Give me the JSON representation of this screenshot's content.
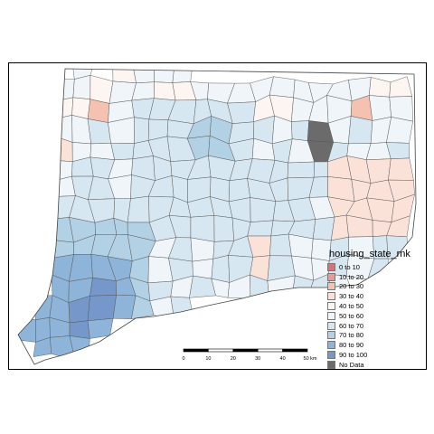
{
  "legend": {
    "title": "housing_state_rnk",
    "items": [
      {
        "label": "0 to 10",
        "color": "#d7717a"
      },
      {
        "label": "10 to 20",
        "color": "#e99a91"
      },
      {
        "label": "20 to 30",
        "color": "#f5c2b2"
      },
      {
        "label": "30 to 40",
        "color": "#fbe2d8"
      },
      {
        "label": "40 to 50",
        "color": "#fdf5f1"
      },
      {
        "label": "50 to 60",
        "color": "#eff5f9"
      },
      {
        "label": "60 to 70",
        "color": "#d6e7f1"
      },
      {
        "label": "70 to 80",
        "color": "#b3d1e5"
      },
      {
        "label": "80 to 90",
        "color": "#8eb5d9"
      },
      {
        "label": "90 to 100",
        "color": "#7697c9"
      },
      {
        "label": "No Data",
        "color": "#6b6b6b"
      }
    ]
  },
  "scale": {
    "ticks": [
      "0",
      "10",
      "20",
      "30",
      "40",
      "50 km"
    ]
  }
}
